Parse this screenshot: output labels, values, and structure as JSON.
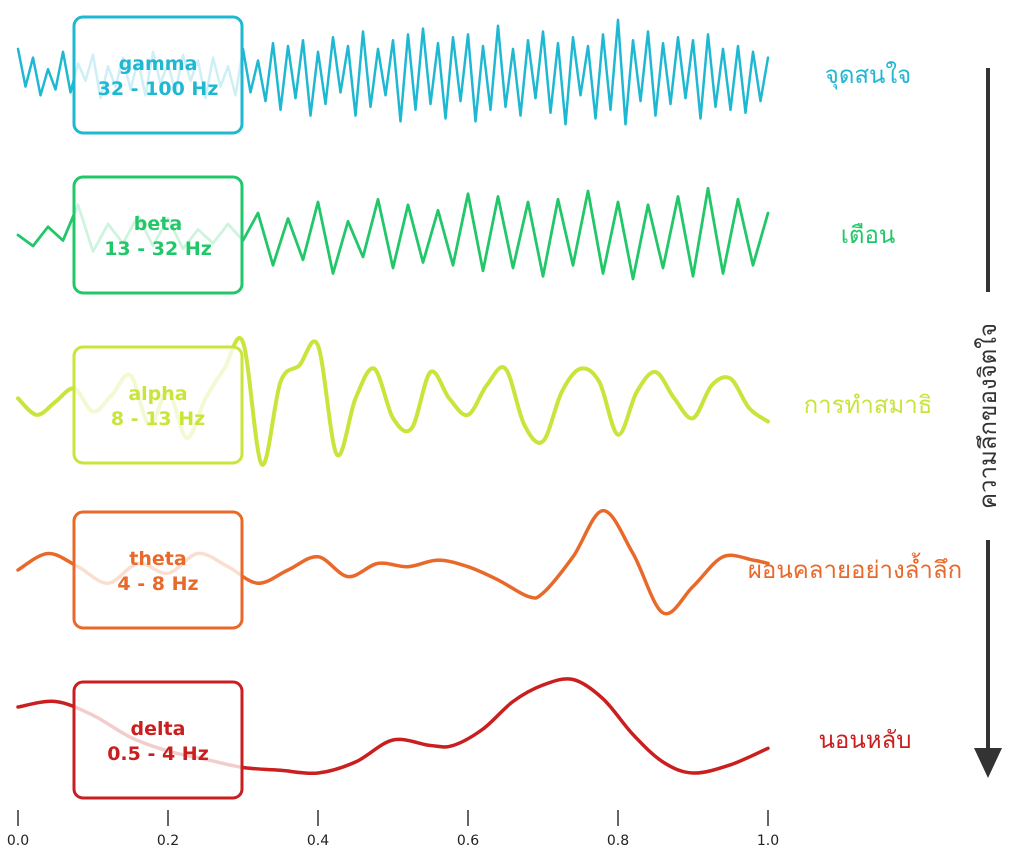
{
  "chart_data": {
    "type": "line",
    "x_ticks": [
      "0.0",
      "0.2",
      "0.4",
      "0.6",
      "0.8",
      "1.0"
    ],
    "xlim": [
      0,
      1
    ],
    "axis_label": "ความลึกของจิตใจ",
    "bands": [
      {
        "name": "gamma",
        "range": "32 - 100 Hz",
        "state": "จุดสนใจ",
        "color": "#1fb8d2",
        "x": [
          0.0,
          0.01,
          0.02,
          0.03,
          0.04,
          0.05,
          0.06,
          0.07,
          0.08,
          0.09,
          0.1,
          0.11,
          0.12,
          0.13,
          0.14,
          0.15,
          0.16,
          0.17,
          0.18,
          0.19,
          0.2,
          0.21,
          0.22,
          0.23,
          0.24,
          0.25,
          0.26,
          0.27,
          0.28,
          0.29,
          0.3,
          0.31,
          0.32,
          0.33,
          0.34,
          0.35,
          0.36,
          0.37,
          0.38,
          0.39,
          0.4,
          0.41,
          0.42,
          0.43,
          0.44,
          0.45,
          0.46,
          0.47,
          0.48,
          0.49,
          0.5,
          0.51,
          0.52,
          0.53,
          0.54,
          0.55,
          0.56,
          0.57,
          0.58,
          0.59,
          0.6,
          0.61,
          0.62,
          0.63,
          0.64,
          0.65,
          0.66,
          0.67,
          0.68,
          0.69,
          0.7,
          0.71,
          0.72,
          0.73,
          0.74,
          0.75,
          0.76,
          0.77,
          0.78,
          0.79,
          0.8,
          0.81,
          0.82,
          0.83,
          0.84,
          0.85,
          0.86,
          0.87,
          0.88,
          0.89,
          0.9,
          0.91,
          0.92,
          0.93,
          0.94,
          0.95,
          0.96,
          0.97,
          0.98,
          0.99,
          1.0
        ],
        "y": [
          0.45,
          -0.2,
          0.3,
          -0.35,
          0.1,
          -0.25,
          0.4,
          -0.3,
          0.2,
          -0.1,
          0.35,
          -0.4,
          0.15,
          -0.2,
          0.3,
          -0.25,
          0.25,
          -0.35,
          0.4,
          -0.15,
          0.2,
          -0.3,
          0.35,
          -0.1,
          0.25,
          -0.4,
          0.3,
          -0.2,
          0.15,
          -0.35,
          0.45,
          -0.3,
          0.25,
          -0.45,
          0.55,
          -0.6,
          0.5,
          -0.4,
          0.6,
          -0.7,
          0.4,
          -0.5,
          0.65,
          -0.3,
          0.5,
          -0.7,
          0.75,
          -0.55,
          0.45,
          -0.35,
          0.6,
          -0.8,
          0.7,
          -0.6,
          0.8,
          -0.5,
          0.55,
          -0.75,
          0.65,
          -0.45,
          0.7,
          -0.8,
          0.5,
          -0.6,
          0.85,
          -0.55,
          0.45,
          -0.7,
          0.6,
          -0.4,
          0.75,
          -0.65,
          0.55,
          -0.85,
          0.65,
          -0.35,
          0.5,
          -0.75,
          0.7,
          -0.6,
          0.95,
          -0.85,
          0.6,
          -0.45,
          0.75,
          -0.7,
          0.55,
          -0.5,
          0.65,
          -0.4,
          0.6,
          -0.75,
          0.7,
          -0.55,
          0.45,
          -0.6,
          0.5,
          -0.65,
          0.4,
          -0.45,
          0.3
        ]
      },
      {
        "name": "beta",
        "range": "13 - 32 Hz",
        "state": "เตือน",
        "color": "#22c76a",
        "x": [
          0.0,
          0.02,
          0.04,
          0.06,
          0.08,
          0.1,
          0.12,
          0.14,
          0.16,
          0.18,
          0.2,
          0.22,
          0.24,
          0.26,
          0.28,
          0.3,
          0.32,
          0.34,
          0.36,
          0.38,
          0.4,
          0.42,
          0.44,
          0.46,
          0.48,
          0.5,
          0.52,
          0.54,
          0.56,
          0.58,
          0.6,
          0.62,
          0.64,
          0.66,
          0.68,
          0.7,
          0.72,
          0.74,
          0.76,
          0.78,
          0.8,
          0.82,
          0.84,
          0.86,
          0.88,
          0.9,
          0.92,
          0.94,
          0.96,
          0.98,
          1.0
        ],
        "y": [
          0.0,
          -0.2,
          0.15,
          -0.1,
          0.55,
          -0.3,
          0.2,
          -0.15,
          0.35,
          -0.2,
          0.3,
          -0.25,
          0.1,
          -0.15,
          0.2,
          -0.1,
          0.4,
          -0.55,
          0.3,
          -0.45,
          0.6,
          -0.7,
          0.25,
          -0.4,
          0.65,
          -0.6,
          0.55,
          -0.5,
          0.45,
          -0.55,
          0.75,
          -0.65,
          0.7,
          -0.6,
          0.6,
          -0.75,
          0.65,
          -0.55,
          0.8,
          -0.7,
          0.6,
          -0.8,
          0.55,
          -0.6,
          0.7,
          -0.75,
          0.85,
          -0.7,
          0.65,
          -0.55,
          0.4
        ]
      },
      {
        "name": "alpha",
        "range": "8 - 13 Hz",
        "state": "การทำสมาธิ",
        "color": "#c9e43a",
        "x": [
          0.0,
          0.025,
          0.05,
          0.075,
          0.1,
          0.125,
          0.15,
          0.175,
          0.2,
          0.225,
          0.25,
          0.275,
          0.3,
          0.325,
          0.35,
          0.375,
          0.4,
          0.425,
          0.45,
          0.475,
          0.5,
          0.525,
          0.55,
          0.575,
          0.6,
          0.625,
          0.65,
          0.675,
          0.7,
          0.725,
          0.75,
          0.775,
          0.8,
          0.825,
          0.85,
          0.875,
          0.9,
          0.925,
          0.95,
          0.975,
          1.0
        ],
        "y": [
          0.1,
          -0.15,
          0.05,
          0.25,
          -0.1,
          0.15,
          0.45,
          -0.3,
          0.2,
          -0.5,
          0.1,
          0.55,
          0.95,
          -0.9,
          0.35,
          0.6,
          0.9,
          -0.75,
          0.1,
          0.55,
          -0.2,
          -0.35,
          0.5,
          0.1,
          -0.15,
          0.3,
          0.55,
          -0.3,
          -0.55,
          0.2,
          0.55,
          0.35,
          -0.45,
          0.2,
          0.5,
          0.1,
          -0.2,
          0.3,
          0.4,
          -0.05,
          -0.25
        ]
      },
      {
        "name": "theta",
        "range": "4 - 8 Hz",
        "state": "ผ่อนคลายอย่างล้ำลึก",
        "color": "#e8692a",
        "x": [
          0.0,
          0.04,
          0.08,
          0.12,
          0.16,
          0.2,
          0.24,
          0.28,
          0.32,
          0.36,
          0.4,
          0.44,
          0.48,
          0.52,
          0.56,
          0.6,
          0.64,
          0.68,
          0.7,
          0.74,
          0.78,
          0.82,
          0.86,
          0.9,
          0.94,
          0.98,
          1.0
        ],
        "y": [
          0.0,
          0.25,
          0.05,
          -0.2,
          0.1,
          -0.05,
          0.25,
          0.05,
          -0.2,
          0.0,
          0.2,
          -0.1,
          0.1,
          0.05,
          0.15,
          0.05,
          -0.15,
          -0.4,
          -0.35,
          0.2,
          0.9,
          0.25,
          -0.65,
          -0.25,
          0.2,
          0.15,
          0.1
        ]
      },
      {
        "name": "delta",
        "range": "0.5 - 4 Hz",
        "state": "นอนหลับ",
        "color": "#c91f1f",
        "x": [
          0.0,
          0.05,
          0.1,
          0.15,
          0.2,
          0.25,
          0.3,
          0.35,
          0.4,
          0.45,
          0.5,
          0.55,
          0.58,
          0.62,
          0.66,
          0.7,
          0.74,
          0.78,
          0.82,
          0.86,
          0.9,
          0.95,
          1.0
        ],
        "y": [
          0.6,
          0.7,
          0.45,
          0.05,
          -0.2,
          -0.35,
          -0.5,
          -0.55,
          -0.6,
          -0.4,
          0.0,
          -0.1,
          -0.1,
          0.2,
          0.7,
          1.0,
          1.1,
          0.75,
          0.1,
          -0.4,
          -0.6,
          -0.45,
          -0.15
        ]
      }
    ]
  }
}
